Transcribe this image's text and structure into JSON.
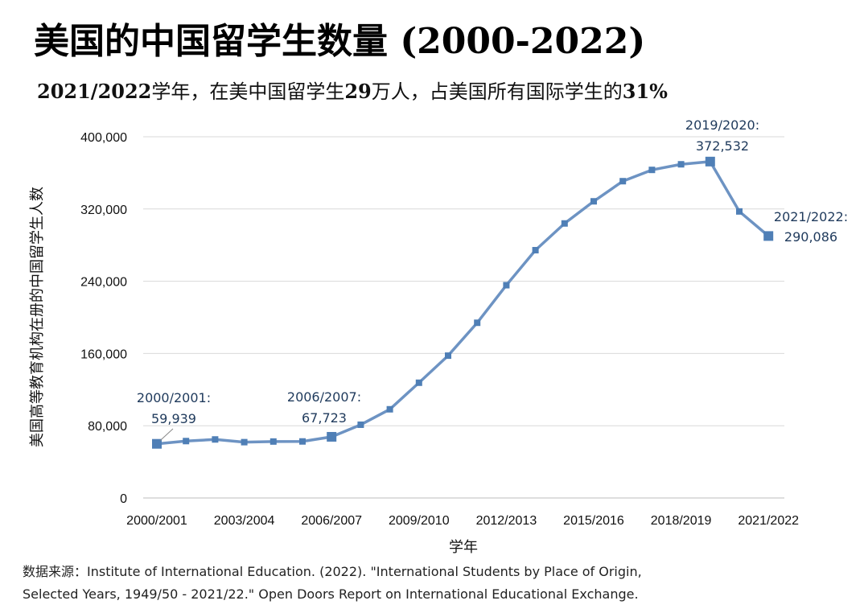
{
  "header": {
    "title": "美国的中国留学生数量 (2000-2022)",
    "subtitle_part1": "2021/2022",
    "subtitle_part2": "学年，在美中国留学生",
    "subtitle_part3": "29",
    "subtitle_part4": "万人，占美国所有国际学生的",
    "subtitle_part5": "31%"
  },
  "source": {
    "line1": "数据来源：Institute of International Education. (2022). \"International Students by Place of Origin,",
    "line2": "Selected Years, 1949/50 - 2021/22.\" Open Doors Report on International Educational Exchange."
  },
  "chart_data": {
    "type": "line",
    "title": "美国的中国留学生数量 (2000-2022)",
    "xlabel": "学年",
    "ylabel": "美国高等教育机构在册的中国留学生人数",
    "ylim": [
      0,
      400000
    ],
    "y_ticks": [
      "0",
      "80,000",
      "160,000",
      "240,000",
      "320,000",
      "400,000"
    ],
    "y_tick_values": [
      0,
      80000,
      160000,
      240000,
      320000,
      400000
    ],
    "x_tick_labels": [
      "2000/2001",
      "2003/2004",
      "2006/2007",
      "2009/2010",
      "2012/2013",
      "2015/2016",
      "2018/2019",
      "2021/2022"
    ],
    "x": [
      "2000/2001",
      "2001/2002",
      "2002/2003",
      "2003/2004",
      "2004/2005",
      "2005/2006",
      "2006/2007",
      "2007/2008",
      "2008/2009",
      "2009/2010",
      "2010/2011",
      "2011/2012",
      "2012/2013",
      "2013/2014",
      "2014/2015",
      "2015/2016",
      "2016/2017",
      "2017/2018",
      "2018/2019",
      "2019/2020",
      "2020/2021",
      "2021/2022"
    ],
    "series": [
      {
        "values": [
          59939,
          63000,
          64800,
          61800,
          62500,
          62600,
          67723,
          81100,
          98200,
          127600,
          157600,
          194000,
          235600,
          274400,
          304000,
          328500,
          350800,
          363300,
          369500,
          372532,
          317300,
          290086
        ],
        "color": "#6d93c3"
      }
    ],
    "grid": true,
    "annotations": [
      {
        "line1": "2000/2001:",
        "line2": "59,939"
      },
      {
        "line1": "2006/2007:",
        "line2": "67,723"
      },
      {
        "line1": "2019/2020:",
        "line2": "372,532"
      },
      {
        "line1": "2021/2022:",
        "line2": "290,086"
      }
    ]
  }
}
